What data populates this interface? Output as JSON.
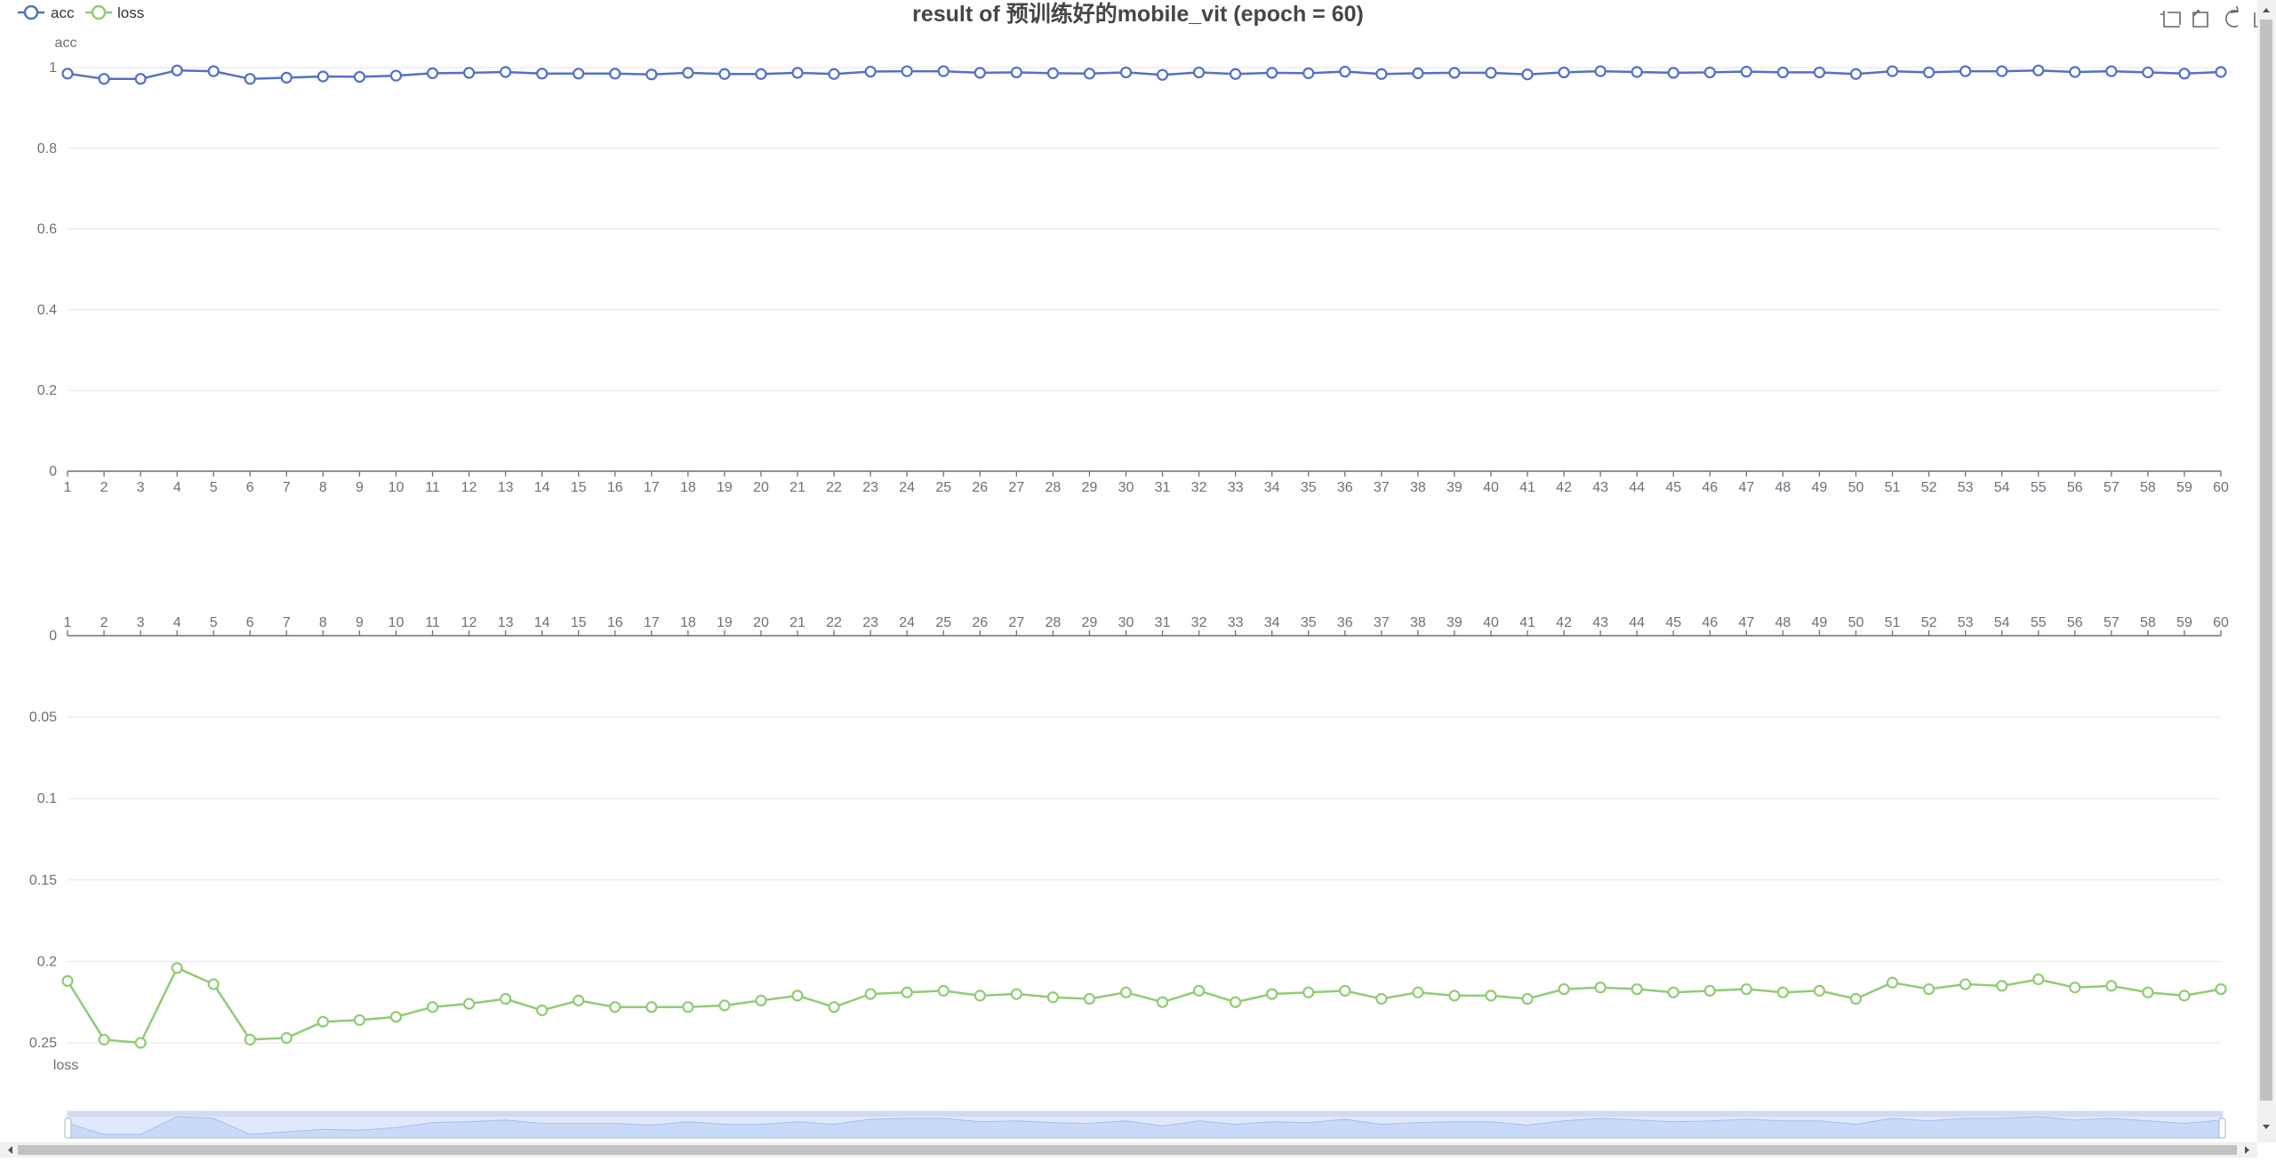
{
  "title": "result of 预训练好的mobile_vit (epoch = 60)",
  "legend": [
    {
      "name": "acc",
      "color": "#5470c6"
    },
    {
      "name": "loss",
      "color": "#91cc75"
    }
  ],
  "toolbox": [
    "zoom-icon",
    "zoom-reset-icon",
    "restore-icon",
    "save-image-icon"
  ],
  "chart_data": [
    {
      "type": "line",
      "x": [
        1,
        2,
        3,
        4,
        5,
        6,
        7,
        8,
        9,
        10,
        11,
        12,
        13,
        14,
        15,
        16,
        17,
        18,
        19,
        20,
        21,
        22,
        23,
        24,
        25,
        26,
        27,
        28,
        29,
        30,
        31,
        32,
        33,
        34,
        35,
        36,
        37,
        38,
        39,
        40,
        41,
        42,
        43,
        44,
        45,
        46,
        47,
        48,
        49,
        50,
        51,
        52,
        53,
        54,
        55,
        56,
        57,
        58,
        59,
        60
      ],
      "series": [
        {
          "name": "acc",
          "color": "#5470c6",
          "values": [
            0.985,
            0.972,
            0.972,
            0.993,
            0.991,
            0.972,
            0.975,
            0.978,
            0.977,
            0.98,
            0.986,
            0.987,
            0.989,
            0.985,
            0.985,
            0.985,
            0.983,
            0.987,
            0.984,
            0.984,
            0.987,
            0.984,
            0.99,
            0.991,
            0.991,
            0.987,
            0.988,
            0.986,
            0.985,
            0.988,
            0.982,
            0.988,
            0.984,
            0.987,
            0.986,
            0.99,
            0.984,
            0.986,
            0.987,
            0.987,
            0.983,
            0.988,
            0.991,
            0.989,
            0.987,
            0.988,
            0.99,
            0.988,
            0.988,
            0.984,
            0.991,
            0.988,
            0.991,
            0.991,
            0.993,
            0.989,
            0.991,
            0.988,
            0.985,
            0.989
          ]
        }
      ],
      "ylabel": "acc",
      "ylim": [
        0,
        1
      ],
      "yticks": [
        "0",
        "0.2",
        "0.4",
        "0.6",
        "0.8",
        "1"
      ],
      "y_inverse": false,
      "grid": true
    },
    {
      "type": "line",
      "x": [
        1,
        2,
        3,
        4,
        5,
        6,
        7,
        8,
        9,
        10,
        11,
        12,
        13,
        14,
        15,
        16,
        17,
        18,
        19,
        20,
        21,
        22,
        23,
        24,
        25,
        26,
        27,
        28,
        29,
        30,
        31,
        32,
        33,
        34,
        35,
        36,
        37,
        38,
        39,
        40,
        41,
        42,
        43,
        44,
        45,
        46,
        47,
        48,
        49,
        50,
        51,
        52,
        53,
        54,
        55,
        56,
        57,
        58,
        59,
        60
      ],
      "series": [
        {
          "name": "loss",
          "color": "#91cc75",
          "values": [
            0.212,
            0.248,
            0.25,
            0.204,
            0.214,
            0.248,
            0.247,
            0.237,
            0.236,
            0.234,
            0.228,
            0.226,
            0.223,
            0.23,
            0.224,
            0.228,
            0.228,
            0.228,
            0.227,
            0.224,
            0.221,
            0.228,
            0.22,
            0.219,
            0.218,
            0.221,
            0.22,
            0.222,
            0.223,
            0.219,
            0.225,
            0.218,
            0.225,
            0.22,
            0.219,
            0.218,
            0.223,
            0.219,
            0.221,
            0.221,
            0.223,
            0.217,
            0.216,
            0.217,
            0.219,
            0.218,
            0.217,
            0.219,
            0.218,
            0.223,
            0.213,
            0.217,
            0.214,
            0.215,
            0.211,
            0.216,
            0.215,
            0.219,
            0.221,
            0.217
          ]
        }
      ],
      "ylabel": "loss",
      "ylim": [
        0,
        0.25
      ],
      "yticks": [
        "0",
        "0.05",
        "0.1",
        "0.15",
        "0.2",
        "0.25"
      ],
      "y_inverse": true,
      "grid": true
    }
  ]
}
